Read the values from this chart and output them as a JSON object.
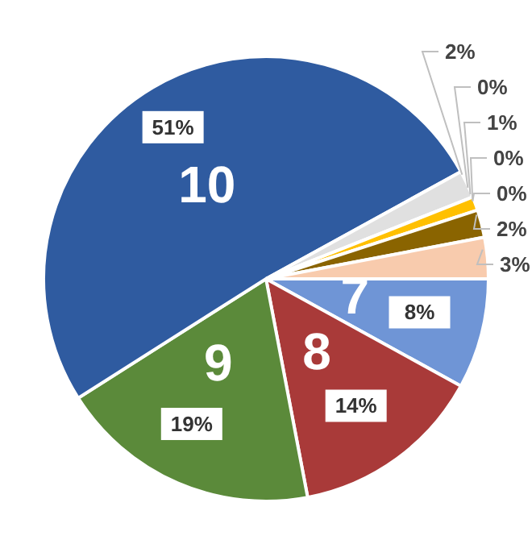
{
  "chart_data": {
    "type": "pie",
    "categories": [
      "7",
      "8",
      "9",
      "10",
      null,
      null,
      null,
      null,
      null,
      null,
      null
    ],
    "values": [
      8,
      14,
      19,
      51,
      2,
      0,
      1,
      0,
      0,
      2,
      3
    ],
    "colors": [
      "#6f95d6",
      "#a93a39",
      "#5b8a3a",
      "#2f5ba0",
      "#e0e0e0",
      "#a5a5a5",
      "#ffc000",
      "#4472c4",
      "#ed7d31",
      "#8a6400",
      "#f8cbad"
    ],
    "value_labels": [
      "8%",
      "14%",
      "19%",
      "51%",
      "2%",
      "0%",
      "1%",
      "0%",
      "0%",
      "2%",
      "3%"
    ]
  }
}
